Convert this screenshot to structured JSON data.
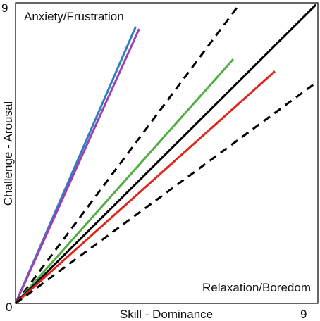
{
  "chart_data": {
    "type": "line",
    "xlabel": "Skill - Dominance",
    "ylabel": "Challenge - Arousal",
    "xlim": [
      0,
      9
    ],
    "ylim": [
      0,
      9
    ],
    "tick_labels": {
      "origin": "0",
      "x_max": "9",
      "y_max": "9"
    },
    "annotations": {
      "upper_left": "Anxiety/Frustration",
      "lower_right": "Relaxation/Boredom"
    },
    "grid": false,
    "series": [
      {
        "color": "#2e7fc1",
        "style": "solid",
        "x": [
          0,
          3.58
        ],
        "y": [
          0,
          8.29
        ]
      },
      {
        "color": "#a040b0",
        "style": "solid",
        "x": [
          0,
          3.68
        ],
        "y": [
          0,
          8.22
        ]
      },
      {
        "color": "#000000",
        "style": "dashed",
        "x": [
          0,
          6.66
        ],
        "y": [
          0,
          8.95
        ]
      },
      {
        "color": "#4fae3f",
        "style": "solid",
        "x": [
          0,
          6.48
        ],
        "y": [
          0,
          7.31
        ]
      },
      {
        "color": "#000000",
        "style": "solid",
        "x": [
          0,
          8.94
        ],
        "y": [
          0,
          8.94
        ]
      },
      {
        "color": "#e0231b",
        "style": "solid",
        "x": [
          0,
          7.72
        ],
        "y": [
          0,
          6.95
        ]
      },
      {
        "color": "#000000",
        "style": "dashed",
        "x": [
          0,
          8.92
        ],
        "y": [
          0,
          6.59
        ]
      }
    ]
  }
}
